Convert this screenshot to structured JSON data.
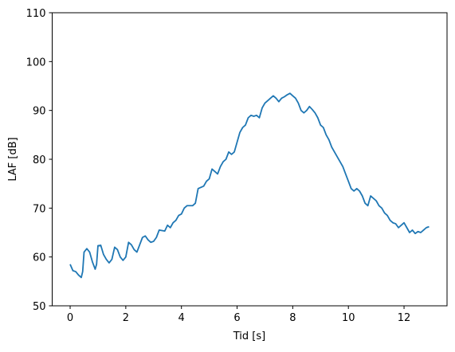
{
  "chart_data": {
    "type": "line",
    "xlabel": "Tid [s]",
    "ylabel": "LAF [dB]",
    "color": "#1f77b4",
    "x": [
      0.0,
      0.1,
      0.2,
      0.3,
      0.4,
      0.45,
      0.5,
      0.6,
      0.7,
      0.8,
      0.9,
      0.95,
      1.0,
      1.1,
      1.2,
      1.3,
      1.4,
      1.5,
      1.6,
      1.7,
      1.8,
      1.9,
      2.0,
      2.1,
      2.2,
      2.3,
      2.4,
      2.5,
      2.6,
      2.7,
      2.8,
      2.9,
      3.0,
      3.1,
      3.2,
      3.3,
      3.4,
      3.5,
      3.6,
      3.7,
      3.8,
      3.9,
      4.0,
      4.1,
      4.2,
      4.4,
      4.5,
      4.6,
      4.8,
      4.9,
      5.0,
      5.1,
      5.2,
      5.3,
      5.4,
      5.5,
      5.6,
      5.7,
      5.8,
      5.9,
      6.0,
      6.1,
      6.2,
      6.3,
      6.4,
      6.5,
      6.6,
      6.7,
      6.8,
      6.9,
      7.0,
      7.1,
      7.2,
      7.3,
      7.4,
      7.5,
      7.6,
      7.7,
      7.8,
      7.9,
      8.0,
      8.1,
      8.2,
      8.3,
      8.4,
      8.5,
      8.6,
      8.7,
      8.8,
      8.9,
      9.0,
      9.1,
      9.2,
      9.3,
      9.4,
      9.5,
      9.6,
      9.7,
      9.8,
      9.9,
      10.0,
      10.1,
      10.2,
      10.3,
      10.4,
      10.5,
      10.6,
      10.7,
      10.8,
      10.9,
      11.0,
      11.1,
      11.2,
      11.3,
      11.4,
      11.5,
      11.6,
      11.7,
      11.8,
      11.9,
      12.0,
      12.1,
      12.2,
      12.3,
      12.4,
      12.5,
      12.6,
      12.7,
      12.8,
      12.9
    ],
    "values": [
      58.5,
      57.2,
      57.0,
      56.3,
      55.8,
      57.0,
      61.0,
      61.7,
      61.0,
      59.0,
      57.5,
      58.5,
      62.3,
      62.4,
      60.5,
      59.5,
      58.8,
      59.5,
      62.0,
      61.5,
      60.0,
      59.3,
      60.0,
      63.0,
      62.5,
      61.5,
      61.0,
      62.5,
      64.0,
      64.3,
      63.5,
      63.0,
      63.2,
      64.0,
      65.5,
      65.4,
      65.3,
      66.5,
      66.0,
      67.0,
      67.5,
      68.5,
      68.8,
      70.0,
      70.5,
      70.5,
      71.0,
      74.0,
      74.5,
      75.5,
      76.0,
      78.0,
      77.5,
      77.0,
      78.5,
      79.5,
      80.0,
      81.5,
      81.0,
      81.5,
      83.5,
      85.5,
      86.5,
      87.0,
      88.5,
      89.0,
      88.8,
      89.0,
      88.5,
      90.5,
      91.5,
      92.0,
      92.5,
      93.0,
      92.5,
      91.8,
      92.5,
      92.8,
      93.2,
      93.5,
      93.0,
      92.5,
      91.5,
      90.0,
      89.5,
      90.0,
      90.8,
      90.2,
      89.5,
      88.5,
      87.0,
      86.5,
      85.0,
      84.0,
      82.5,
      81.5,
      80.5,
      79.5,
      78.5,
      77.0,
      75.5,
      74.0,
      73.5,
      74.0,
      73.5,
      72.5,
      71.0,
      70.5,
      72.5,
      72.0,
      71.5,
      70.5,
      70.0,
      69.0,
      68.5,
      67.5,
      67.0,
      66.8,
      66.0,
      66.5,
      67.0,
      66.0,
      65.0,
      65.5,
      64.8,
      65.2,
      65.0,
      65.5,
      66.0,
      66.2
    ],
    "xlim": [
      -0.645,
      13.545
    ],
    "xticks": [
      0,
      2,
      4,
      6,
      8,
      10,
      12
    ],
    "ylim": [
      50,
      110
    ],
    "yticks": [
      50,
      60,
      70,
      80,
      90,
      100,
      110
    ]
  }
}
